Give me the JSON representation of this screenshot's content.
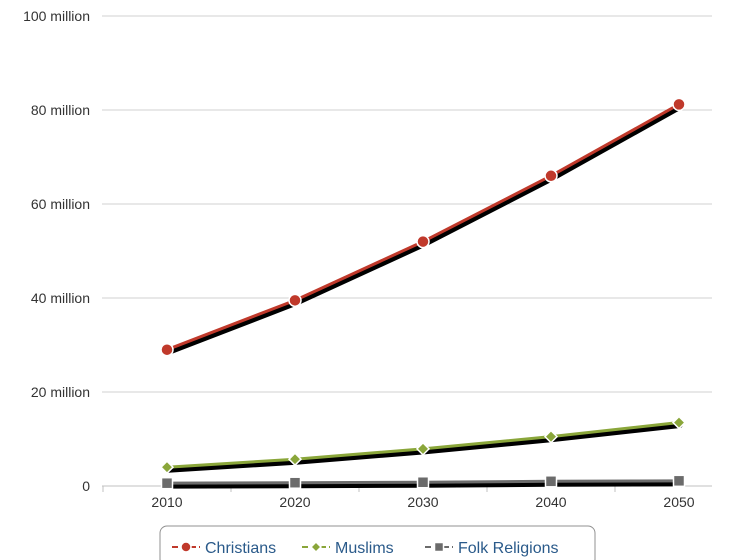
{
  "chart_data": {
    "type": "line",
    "x": [
      "2010",
      "2020",
      "2030",
      "2040",
      "2050"
    ],
    "ylim": [
      0,
      100
    ],
    "y_ticks": [
      {
        "value": 0,
        "label": "0"
      },
      {
        "value": 20,
        "label": "20 million"
      },
      {
        "value": 40,
        "label": "40 million"
      },
      {
        "value": 60,
        "label": "60 million"
      },
      {
        "value": 80,
        "label": "80 million"
      },
      {
        "value": 100,
        "label": "100 million"
      }
    ],
    "grid": true,
    "legend_position": "bottom-center",
    "series": [
      {
        "name": "Christians",
        "values": [
          29.0,
          39.5,
          52.0,
          66.0,
          81.2
        ],
        "color": "#c0392b",
        "marker": "circle"
      },
      {
        "name": "Muslims",
        "values": [
          4.0,
          5.7,
          7.9,
          10.5,
          13.5
        ],
        "color": "#8aa63a",
        "marker": "diamond"
      },
      {
        "name": "Folk Religions",
        "values": [
          0.6,
          0.7,
          0.8,
          1.0,
          1.1
        ],
        "color": "#6b6b6b",
        "marker": "square"
      }
    ]
  }
}
